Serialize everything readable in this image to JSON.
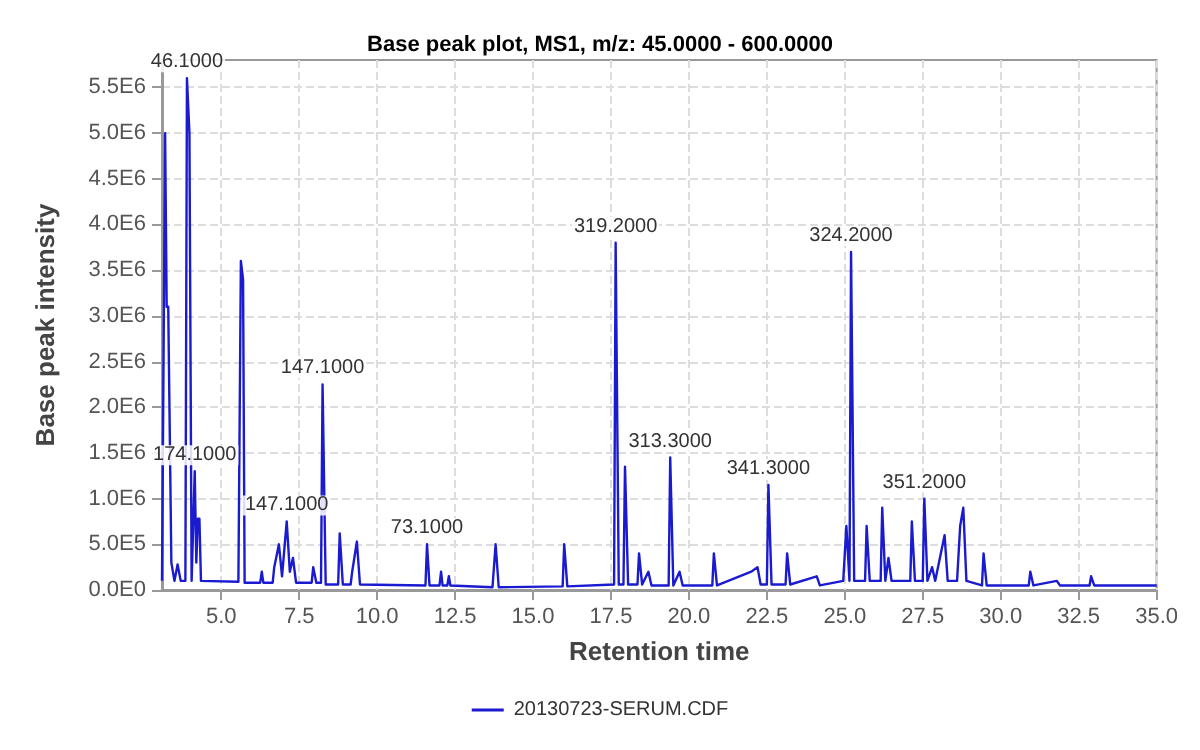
{
  "chart_data": {
    "type": "line",
    "title": "Base peak plot, MS1, m/z: 45.0000 - 600.0000",
    "xlabel": "Retention time",
    "ylabel": "Base peak intensity",
    "x": [
      3.1,
      3.2,
      3.25,
      3.3,
      3.4,
      3.5,
      3.6,
      3.7,
      3.85,
      3.9,
      3.98,
      4.05,
      4.15,
      4.2,
      4.25,
      4.3,
      4.35,
      5.55,
      5.63,
      5.7,
      5.75,
      6.25,
      6.3,
      6.35,
      6.65,
      6.7,
      6.85,
      6.95,
      7.1,
      7.2,
      7.3,
      7.4,
      7.9,
      7.95,
      8.05,
      8.2,
      8.25,
      8.35,
      8.75,
      8.8,
      8.9,
      9.15,
      9.2,
      9.35,
      9.45,
      11.55,
      11.6,
      11.68,
      12.0,
      12.05,
      12.1,
      12.25,
      12.3,
      12.35,
      13.7,
      13.8,
      13.9,
      15.95,
      16.0,
      16.1,
      17.6,
      17.65,
      17.75,
      17.9,
      17.95,
      18.05,
      18.35,
      18.4,
      18.5,
      18.7,
      18.8,
      19.35,
      19.4,
      19.5,
      19.7,
      19.8,
      20.75,
      20.8,
      20.9,
      22.0,
      22.2,
      22.3,
      22.5,
      22.55,
      22.65,
      23.1,
      23.15,
      23.25,
      24.1,
      24.2,
      24.95,
      25.05,
      25.15,
      25.2,
      25.3,
      25.65,
      25.7,
      25.8,
      26.15,
      26.2,
      26.3,
      26.4,
      26.5,
      27.1,
      27.15,
      27.25,
      27.5,
      27.55,
      27.65,
      27.8,
      27.9,
      28.2,
      28.3,
      28.6,
      28.7,
      28.8,
      28.9,
      29.4,
      29.45,
      29.55,
      30.9,
      30.95,
      31.05,
      31.8,
      31.9,
      32.85,
      32.9,
      33.0,
      35
    ],
    "series": [
      {
        "name": "20130723-SERUM.CDF",
        "color": "#1a1ad0",
        "values": [
          100000,
          5000000,
          3100000,
          3100000,
          300000,
          100000,
          280000,
          100000,
          100000,
          5600000,
          5000000,
          100000,
          1300000,
          300000,
          780000,
          780000,
          100000,
          90000,
          3600000,
          3400000,
          80000,
          80000,
          200000,
          80000,
          80000,
          250000,
          500000,
          150000,
          750000,
          200000,
          350000,
          80000,
          80000,
          250000,
          80000,
          80000,
          2250000,
          60000,
          60000,
          620000,
          60000,
          60000,
          200000,
          530000,
          60000,
          50000,
          500000,
          50000,
          50000,
          200000,
          50000,
          50000,
          150000,
          50000,
          30000,
          500000,
          30000,
          40000,
          500000,
          40000,
          60000,
          3800000,
          60000,
          60000,
          1350000,
          60000,
          60000,
          400000,
          60000,
          200000,
          50000,
          50000,
          1450000,
          50000,
          200000,
          50000,
          50000,
          400000,
          50000,
          200000,
          250000,
          60000,
          60000,
          1150000,
          60000,
          60000,
          400000,
          60000,
          150000,
          50000,
          100000,
          700000,
          100000,
          3700000,
          100000,
          100000,
          700000,
          100000,
          100000,
          900000,
          100000,
          350000,
          100000,
          100000,
          750000,
          100000,
          100000,
          1000000,
          100000,
          250000,
          100000,
          600000,
          100000,
          100000,
          700000,
          900000,
          100000,
          50000,
          400000,
          50000,
          50000,
          200000,
          50000,
          100000,
          50000,
          50000,
          150000,
          50000,
          50000
        ]
      }
    ],
    "xlim": [
      3.1,
      35
    ],
    "xticks": [
      {
        "value": 5,
        "label": "5.0"
      },
      {
        "value": 7.5,
        "label": "7.5"
      },
      {
        "value": 10,
        "label": "10.0"
      },
      {
        "value": 12.5,
        "label": "12.5"
      },
      {
        "value": 15,
        "label": "15.0"
      },
      {
        "value": 17.5,
        "label": "17.5"
      },
      {
        "value": 20,
        "label": "20.0"
      },
      {
        "value": 22.5,
        "label": "22.5"
      },
      {
        "value": 25,
        "label": "25.0"
      },
      {
        "value": 27.5,
        "label": "27.5"
      },
      {
        "value": 30,
        "label": "30.0"
      },
      {
        "value": 32.5,
        "label": "32.5"
      },
      {
        "value": 35,
        "label": "35.0"
      }
    ],
    "ylim": [
      0,
      5800000
    ],
    "yticks": [
      {
        "value": 0,
        "label": "0.0E0"
      },
      {
        "value": 500000,
        "label": "5.0E5"
      },
      {
        "value": 1000000,
        "label": "1.0E6"
      },
      {
        "value": 1500000,
        "label": "1.5E6"
      },
      {
        "value": 2000000,
        "label": "2.0E6"
      },
      {
        "value": 2500000,
        "label": "2.5E6"
      },
      {
        "value": 3000000,
        "label": "3.0E6"
      },
      {
        "value": 3500000,
        "label": "3.5E6"
      },
      {
        "value": 4000000,
        "label": "4.0E6"
      },
      {
        "value": 4500000,
        "label": "4.5E6"
      },
      {
        "value": 5000000,
        "label": "5.0E6"
      },
      {
        "value": 5500000,
        "label": "5.5E6"
      }
    ],
    "annotations": [
      {
        "text": "46.1000",
        "x": 3.9,
        "y": 5600000
      },
      {
        "text": "174.1000",
        "x": 4.15,
        "y": 1300000
      },
      {
        "text": "147.1000",
        "x": 7.1,
        "y": 750000
      },
      {
        "text": "147.1000",
        "x": 8.25,
        "y": 2250000
      },
      {
        "text": "73.1000",
        "x": 11.6,
        "y": 500000
      },
      {
        "text": "319.2000",
        "x": 17.65,
        "y": 3800000
      },
      {
        "text": "313.3000",
        "x": 19.4,
        "y": 1450000
      },
      {
        "text": "341.3000",
        "x": 22.55,
        "y": 1150000
      },
      {
        "text": "324.2000",
        "x": 25.2,
        "y": 3700000
      },
      {
        "text": "351.2000",
        "x": 27.55,
        "y": 1000000
      }
    ],
    "grid": true,
    "legend": "bottom",
    "marker": "none",
    "line_style": "solid"
  }
}
